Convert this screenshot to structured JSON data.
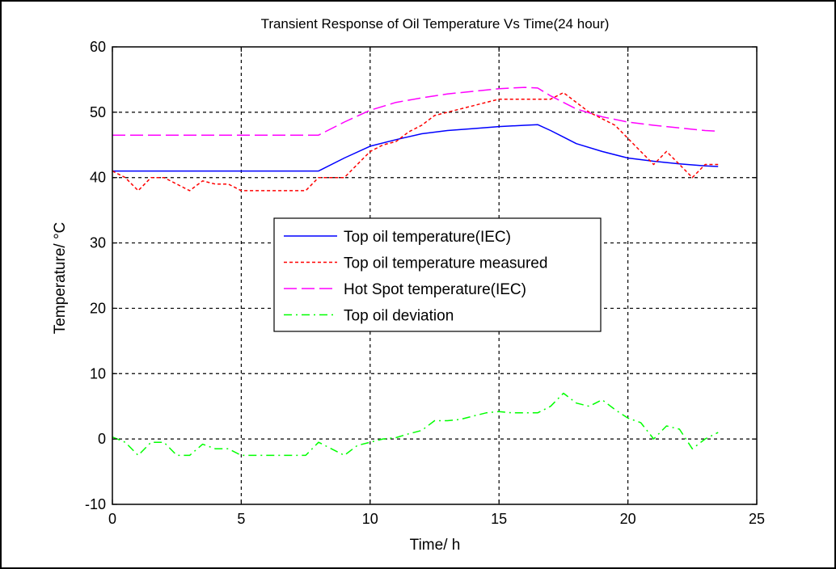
{
  "chart_data": {
    "type": "line",
    "title": "Transient Response of Oil Temperature Vs Time(24 hour)",
    "xlabel": "Time/ h",
    "ylabel": "Temperature/ °C",
    "xlim": [
      0,
      25
    ],
    "ylim": [
      -10,
      60
    ],
    "xticks": [
      "0",
      "5",
      "10",
      "15",
      "20",
      "25"
    ],
    "yticks": [
      "-10",
      "0",
      "10",
      "20",
      "30",
      "40",
      "50",
      "60"
    ],
    "grid": true,
    "legend_position": "center",
    "series": [
      {
        "name": "Top oil temperature(IEC)",
        "color": "#0000ff",
        "style": "solid",
        "x": [
          0,
          8,
          9,
          10,
          11,
          12,
          13,
          14,
          15,
          16,
          16.5,
          17,
          17.5,
          18,
          19,
          20,
          21,
          22,
          23,
          23.5
        ],
        "y": [
          41,
          41,
          43,
          44.8,
          45.8,
          46.7,
          47.2,
          47.5,
          47.8,
          48.0,
          48.1,
          47.2,
          46.2,
          45.2,
          44.0,
          43.0,
          42.5,
          42.1,
          41.8,
          41.7
        ]
      },
      {
        "name": "Top oil temperature measured",
        "color": "#ff0000",
        "style": "dashed",
        "x": [
          0,
          0.5,
          1,
          1.5,
          2,
          2.5,
          3,
          3.5,
          4,
          4.5,
          5,
          5.5,
          6,
          6.5,
          7,
          7.5,
          8,
          8.5,
          9,
          9.5,
          10,
          10.5,
          11,
          11.5,
          12,
          12.5,
          13,
          13.5,
          14,
          14.5,
          15,
          15.5,
          16,
          16.5,
          17,
          17.5,
          18,
          18.5,
          19,
          19.5,
          20,
          20.5,
          21,
          21.5,
          22,
          22.5,
          23,
          23.5
        ],
        "y": [
          41,
          40,
          38,
          40,
          40,
          39,
          38,
          39.5,
          39,
          39,
          38,
          38,
          38,
          38,
          38,
          38,
          40,
          40,
          40,
          42,
          44,
          45,
          45.5,
          47,
          48,
          49.5,
          50,
          50.5,
          51,
          51.5,
          52,
          52,
          52,
          52,
          52,
          53,
          51.5,
          50,
          49,
          48,
          46,
          44,
          42,
          44,
          42,
          40,
          42,
          42
        ]
      },
      {
        "name": "Hot Spot temperature(IEC)",
        "color": "#ff00ff",
        "style": "longdash",
        "x": [
          0,
          8,
          9,
          10,
          11,
          12,
          13,
          14,
          15,
          16,
          16.5,
          17,
          18,
          19,
          20,
          21,
          22,
          23,
          23.5
        ],
        "y": [
          46.5,
          46.5,
          48.5,
          50.3,
          51.5,
          52.2,
          52.8,
          53.2,
          53.6,
          53.8,
          53.7,
          52.5,
          50.5,
          49.3,
          48.5,
          48.0,
          47.6,
          47.2,
          47.1
        ]
      },
      {
        "name": "Top oil deviation",
        "color": "#00ff00",
        "style": "dashdot",
        "x": [
          0,
          0.5,
          1,
          1.5,
          2,
          2.5,
          3,
          3.5,
          4,
          4.5,
          5,
          5.5,
          6,
          6.5,
          7,
          7.5,
          8,
          8.5,
          9,
          9.5,
          10,
          10.5,
          11,
          11.5,
          12,
          12.5,
          13,
          13.5,
          14,
          14.5,
          15,
          15.5,
          16,
          16.5,
          17,
          17.5,
          18,
          18.5,
          19,
          19.5,
          20,
          20.5,
          21,
          21.5,
          22,
          22.5,
          23,
          23.5
        ],
        "y": [
          0.3,
          -0.5,
          -2.5,
          -0.5,
          -0.5,
          -2.5,
          -2.5,
          -0.8,
          -1.5,
          -1.5,
          -2.5,
          -2.5,
          -2.5,
          -2.5,
          -2.5,
          -2.5,
          -0.5,
          -1.5,
          -2.5,
          -1,
          -0.5,
          0,
          0.2,
          0.8,
          1.3,
          2.8,
          2.8,
          3.0,
          3.5,
          4.0,
          4.2,
          4.0,
          4.0,
          4.0,
          5.0,
          7.0,
          5.5,
          5.0,
          6.0,
          4.5,
          3.2,
          2.5,
          0,
          2.0,
          1.5,
          -1.5,
          0,
          1.0
        ]
      }
    ]
  }
}
